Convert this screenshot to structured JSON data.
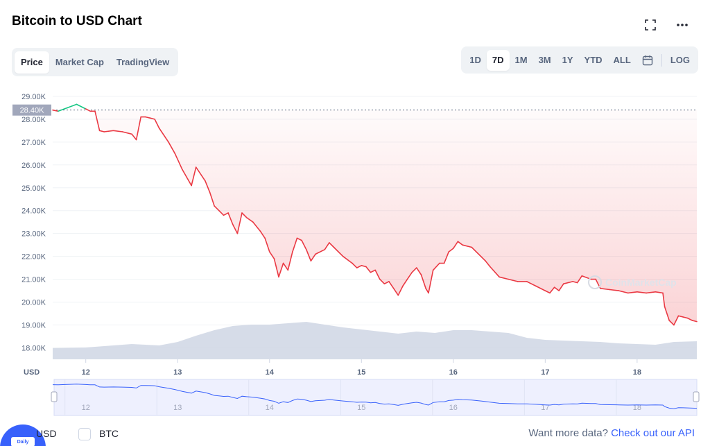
{
  "header": {
    "title": "Bitcoin to USD Chart"
  },
  "tabs": [
    {
      "label": "Price",
      "active": true
    },
    {
      "label": "Market Cap",
      "active": false
    },
    {
      "label": "TradingView",
      "active": false
    }
  ],
  "ranges": [
    {
      "label": "1D",
      "active": false
    },
    {
      "label": "7D",
      "active": true
    },
    {
      "label": "1M",
      "active": false
    },
    {
      "label": "3M",
      "active": false
    },
    {
      "label": "1Y",
      "active": false
    },
    {
      "label": "YTD",
      "active": false
    },
    {
      "label": "ALL",
      "active": false
    }
  ],
  "log_label": "LOG",
  "legend": {
    "usd_label": "USD",
    "btc_label": "BTC",
    "daily_badge": "Daily",
    "api_text": "Want more data?",
    "api_link": "Check out our API"
  },
  "watermark": "CoinMarketCap",
  "colors": {
    "down": "#ea3943",
    "up": "#16c784",
    "accent": "#3861fb",
    "volume": "#cfd6e4"
  },
  "chart_data": {
    "type": "line",
    "title": "Bitcoin to USD Chart",
    "currency_label": "USD",
    "ylim": [
      17500,
      29300
    ],
    "yticks": [
      "29.00K",
      "28.00K",
      "27.00K",
      "26.00K",
      "25.00K",
      "24.00K",
      "23.00K",
      "22.00K",
      "21.00K",
      "20.00K",
      "19.00K",
      "18.00K"
    ],
    "ytick_values": [
      29000,
      28000,
      27000,
      26000,
      25000,
      24000,
      23000,
      22000,
      21000,
      20000,
      19000,
      18000
    ],
    "xticks": [
      "12",
      "13",
      "14",
      "15",
      "16",
      "17",
      "18"
    ],
    "xtick_values": [
      12,
      13,
      14,
      15,
      16,
      17,
      18
    ],
    "xlim": [
      11.64,
      18.65
    ],
    "open_price": 28400,
    "open_price_label": "28.40K",
    "grid": true,
    "series": [
      {
        "x": [
          11.64,
          11.7,
          11.8,
          11.9,
          12.0,
          12.05,
          12.1,
          12.15,
          12.2,
          12.3,
          12.4,
          12.5,
          12.55,
          12.6,
          12.65,
          12.7,
          12.75,
          12.8,
          12.9,
          12.97,
          13.05,
          13.15,
          13.2,
          13.3,
          13.35,
          13.4,
          13.45,
          13.5,
          13.55,
          13.6,
          13.65,
          13.7,
          13.75,
          13.82,
          13.9,
          13.95,
          14.0,
          14.05,
          14.1,
          14.15,
          14.2,
          14.25,
          14.3,
          14.35,
          14.4,
          14.45,
          14.5,
          14.6,
          14.65,
          14.7,
          14.8,
          14.9,
          14.95,
          15.0,
          15.05,
          15.1,
          15.15,
          15.2,
          15.25,
          15.3,
          15.35,
          15.4,
          15.45,
          15.5,
          15.55,
          15.6,
          15.65,
          15.7,
          15.73,
          15.78,
          15.85,
          15.9,
          15.95,
          16.0,
          16.05,
          16.1,
          16.2,
          16.3,
          16.35,
          16.4,
          16.5,
          16.6,
          16.7,
          16.8,
          16.9,
          17.0,
          17.05,
          17.1,
          17.15,
          17.2,
          17.3,
          17.35,
          17.4,
          17.5,
          17.55,
          17.6,
          17.7,
          17.8,
          17.9,
          18.0,
          18.1,
          18.2,
          18.28,
          18.3,
          18.35,
          18.4,
          18.45,
          18.5,
          18.55,
          18.6,
          18.65
        ],
        "y": [
          28400,
          28350,
          28500,
          28650,
          28450,
          28350,
          28350,
          27500,
          27450,
          27500,
          27450,
          27350,
          27100,
          28100,
          28100,
          28050,
          28000,
          27600,
          27000,
          26500,
          25800,
          25100,
          25900,
          25300,
          24800,
          24200,
          24000,
          23800,
          23900,
          23400,
          23000,
          23900,
          23700,
          23500,
          23100,
          22800,
          22200,
          21900,
          21100,
          21700,
          21400,
          22200,
          22800,
          22700,
          22300,
          21800,
          22100,
          22300,
          22600,
          22400,
          22000,
          21700,
          21500,
          21600,
          21550,
          21300,
          21400,
          21000,
          20800,
          20900,
          20600,
          20300,
          20700,
          21000,
          21300,
          21500,
          21200,
          20600,
          20400,
          21400,
          21700,
          21700,
          22200,
          22350,
          22650,
          22500,
          22400,
          22000,
          21800,
          21550,
          21100,
          21000,
          20900,
          20900,
          20700,
          20500,
          20400,
          20650,
          20500,
          20800,
          20900,
          20850,
          21150,
          21000,
          21000,
          20600,
          20550,
          20500,
          20400,
          20450,
          20400,
          20450,
          20400,
          19800,
          19200,
          19000,
          19400,
          19350,
          19300,
          19200,
          19150
        ]
      }
    ],
    "volume_series": {
      "x": [
        11.64,
        12.0,
        12.2,
        12.5,
        12.8,
        13.0,
        13.2,
        13.4,
        13.6,
        13.8,
        14.0,
        14.2,
        14.4,
        14.6,
        14.8,
        15.0,
        15.2,
        15.4,
        15.6,
        15.8,
        16.0,
        16.2,
        16.4,
        16.6,
        16.8,
        17.0,
        17.2,
        17.4,
        17.6,
        17.8,
        18.0,
        18.2,
        18.4,
        18.65
      ],
      "y": [
        16,
        17,
        19,
        22,
        20,
        25,
        34,
        42,
        48,
        50,
        50,
        52,
        54,
        50,
        46,
        43,
        40,
        37,
        40,
        38,
        42,
        42,
        40,
        38,
        31,
        28,
        27,
        26,
        25,
        23,
        22,
        21,
        25,
        26
      ]
    }
  },
  "navigator": {
    "labels": [
      "12",
      "13",
      "14",
      "15",
      "16",
      "17",
      "18"
    ]
  }
}
